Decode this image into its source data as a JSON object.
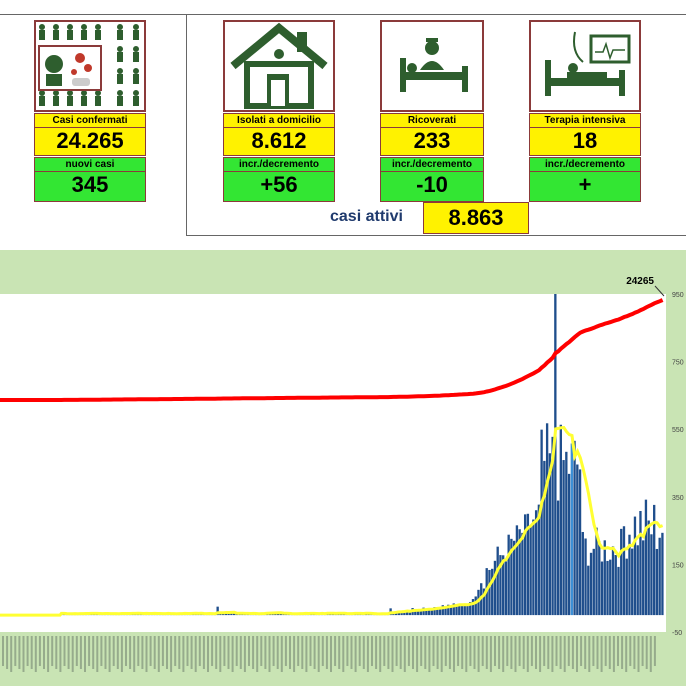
{
  "cards": [
    {
      "label": "Casi confermati",
      "value": "24.265",
      "sub_label": "nuovi casi",
      "sub_value": "345",
      "icon": "crowd-infection-icon"
    },
    {
      "label": "Isolati a domicilio",
      "value": "8.612",
      "sub_label": "incr./decremento",
      "sub_value": "+56",
      "icon": "house-icon"
    },
    {
      "label": "Ricoverati",
      "value": "233",
      "sub_label": "incr./decremento",
      "sub_value": "-10",
      "icon": "hospital-bed-icon"
    },
    {
      "label": "Terapia intensiva",
      "value": "18",
      "sub_label": "incr./decremento",
      "sub_value": "+",
      "icon": "icu-monitor-icon"
    }
  ],
  "casi_attivi": {
    "label": "casi attivi",
    "value": "8.863"
  },
  "chart_data": {
    "type": "bar",
    "annotation": "24265",
    "right_axis_ticks": [
      "950",
      "750",
      "550",
      "350",
      "150",
      "-50"
    ],
    "series": [
      {
        "kind": "bar",
        "color": "#1f4e8c"
      },
      {
        "kind": "line",
        "color": "#ffff33"
      },
      {
        "kind": "line",
        "color": "#ff0000"
      }
    ],
    "cumulative_end": 24265,
    "daily_peak": 950,
    "highlight_bar_color": "#3b8fd6"
  }
}
